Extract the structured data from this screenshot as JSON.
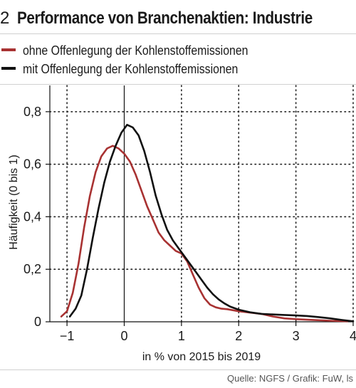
{
  "figure": {
    "number": "2",
    "title": "Performance von Branchenaktien: Industrie",
    "source": "Quelle: NGFS / Grafik: FuW, ls"
  },
  "chart_data": {
    "type": "line",
    "xlabel": "in % von 2015 bis 2019",
    "ylabel": "Häufigkeit (0 bis 1)",
    "xlim": [
      -1.3,
      4.0
    ],
    "ylim": [
      0,
      0.9
    ],
    "xticks": [
      {
        "value": -1,
        "label": "−1"
      },
      {
        "value": 0,
        "label": "0"
      },
      {
        "value": 1,
        "label": "1"
      },
      {
        "value": 2,
        "label": "2"
      },
      {
        "value": 3,
        "label": "3"
      },
      {
        "value": 4,
        "label": "4"
      }
    ],
    "yticks": [
      {
        "value": 0,
        "label": "0"
      },
      {
        "value": 0.2,
        "label": "0,2"
      },
      {
        "value": 0.4,
        "label": "0,4"
      },
      {
        "value": 0.6,
        "label": "0,6"
      },
      {
        "value": 0.8,
        "label": "0,8"
      }
    ],
    "grid": true,
    "legend_position": "top-left",
    "series": [
      {
        "name": "ohne Offenlegung der Kohlenstoffemissionen",
        "color": "#a83232",
        "points": [
          [
            -1.1,
            0.02
          ],
          [
            -1.0,
            0.04
          ],
          [
            -0.9,
            0.11
          ],
          [
            -0.8,
            0.22
          ],
          [
            -0.7,
            0.36
          ],
          [
            -0.6,
            0.48
          ],
          [
            -0.5,
            0.57
          ],
          [
            -0.4,
            0.63
          ],
          [
            -0.3,
            0.66
          ],
          [
            -0.2,
            0.67
          ],
          [
            -0.1,
            0.66
          ],
          [
            0.0,
            0.64
          ],
          [
            0.1,
            0.61
          ],
          [
            0.2,
            0.56
          ],
          [
            0.3,
            0.5
          ],
          [
            0.4,
            0.44
          ],
          [
            0.5,
            0.39
          ],
          [
            0.6,
            0.34
          ],
          [
            0.7,
            0.31
          ],
          [
            0.8,
            0.29
          ],
          [
            0.9,
            0.27
          ],
          [
            1.0,
            0.26
          ],
          [
            1.1,
            0.23
          ],
          [
            1.2,
            0.18
          ],
          [
            1.3,
            0.13
          ],
          [
            1.4,
            0.09
          ],
          [
            1.5,
            0.065
          ],
          [
            1.6,
            0.055
          ],
          [
            1.7,
            0.05
          ],
          [
            1.8,
            0.048
          ],
          [
            2.0,
            0.04
          ],
          [
            2.2,
            0.035
          ],
          [
            2.4,
            0.03
          ],
          [
            2.6,
            0.02
          ],
          [
            2.8,
            0.013
          ],
          [
            3.0,
            0.01
          ],
          [
            3.3,
            0.007
          ],
          [
            3.6,
            0.004
          ],
          [
            3.9,
            0.002
          ]
        ]
      },
      {
        "name": "mit Offenlegung der Kohlenstoffemissionen",
        "color": "#111111",
        "points": [
          [
            -0.95,
            0.02
          ],
          [
            -0.85,
            0.05
          ],
          [
            -0.75,
            0.1
          ],
          [
            -0.65,
            0.2
          ],
          [
            -0.55,
            0.32
          ],
          [
            -0.45,
            0.43
          ],
          [
            -0.35,
            0.53
          ],
          [
            -0.25,
            0.61
          ],
          [
            -0.15,
            0.67
          ],
          [
            -0.05,
            0.72
          ],
          [
            0.05,
            0.75
          ],
          [
            0.15,
            0.74
          ],
          [
            0.25,
            0.71
          ],
          [
            0.35,
            0.65
          ],
          [
            0.45,
            0.57
          ],
          [
            0.55,
            0.48
          ],
          [
            0.65,
            0.41
          ],
          [
            0.75,
            0.35
          ],
          [
            0.85,
            0.31
          ],
          [
            0.95,
            0.28
          ],
          [
            1.05,
            0.25
          ],
          [
            1.15,
            0.22
          ],
          [
            1.25,
            0.19
          ],
          [
            1.35,
            0.16
          ],
          [
            1.45,
            0.13
          ],
          [
            1.55,
            0.105
          ],
          [
            1.65,
            0.085
          ],
          [
            1.75,
            0.07
          ],
          [
            1.85,
            0.058
          ],
          [
            2.0,
            0.046
          ],
          [
            2.2,
            0.036
          ],
          [
            2.4,
            0.03
          ],
          [
            2.6,
            0.028
          ],
          [
            2.8,
            0.026
          ],
          [
            3.0,
            0.024
          ],
          [
            3.2,
            0.022
          ],
          [
            3.4,
            0.018
          ],
          [
            3.6,
            0.013
          ],
          [
            3.8,
            0.007
          ],
          [
            4.0,
            0.002
          ]
        ]
      }
    ]
  }
}
